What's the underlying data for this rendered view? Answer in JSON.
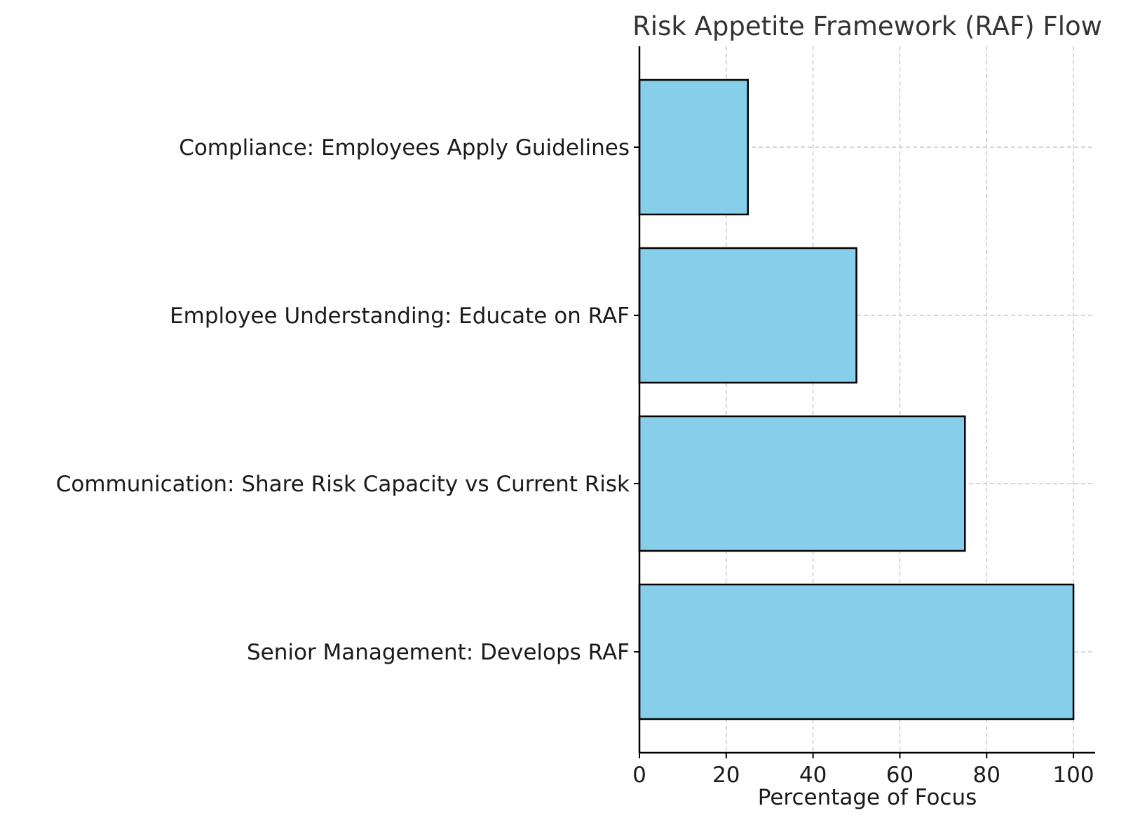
{
  "chart_data": {
    "type": "bar",
    "orientation": "horizontal",
    "title": "Risk Appetite Framework (RAF) Flow",
    "xlabel": "Percentage of Focus",
    "ylabel": "",
    "categories": [
      "Senior Management: Develops RAF",
      "Communication: Share Risk Capacity vs Current Risk",
      "Employee Understanding: Educate on RAF",
      "Compliance: Employees Apply Guidelines"
    ],
    "values": [
      100,
      75,
      50,
      25
    ],
    "xlim": [
      0,
      105
    ],
    "xticks": [
      "0",
      "20",
      "40",
      "60",
      "80",
      "100"
    ],
    "grid": true,
    "bar_color": "#87ceeb",
    "edge_color": "#000000"
  }
}
